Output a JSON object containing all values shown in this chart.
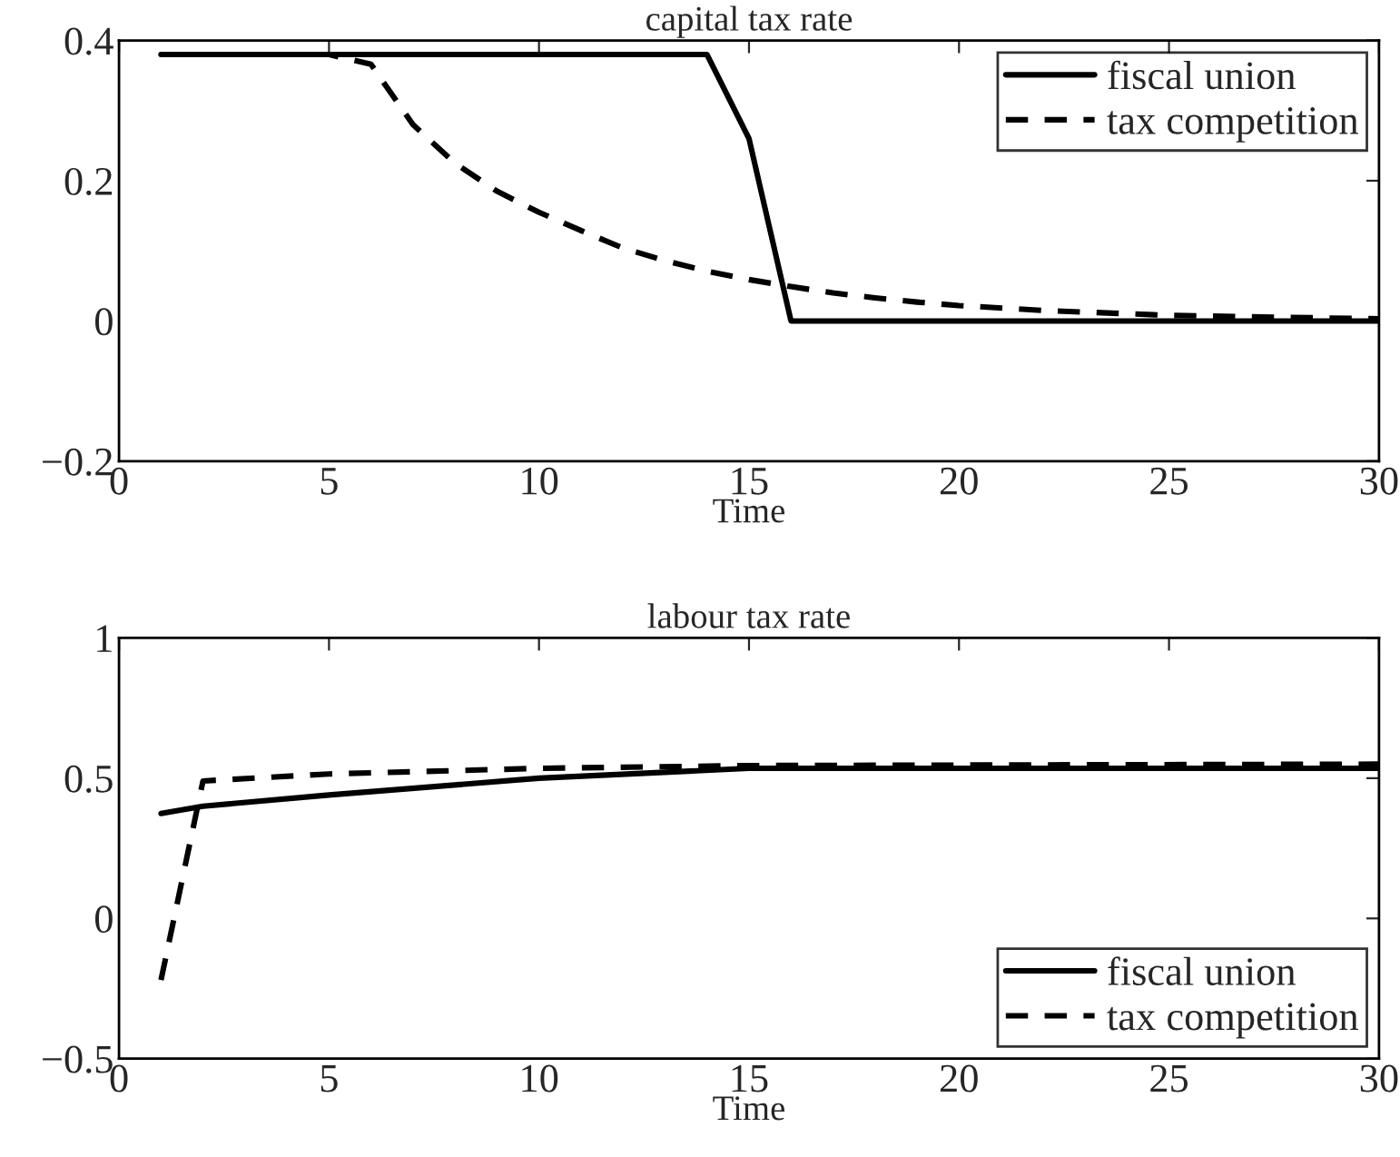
{
  "chart_data": [
    {
      "type": "line",
      "title": "capital tax rate",
      "xlabel": "Time",
      "xlim": [
        0,
        30
      ],
      "xticks": [
        0,
        5,
        10,
        15,
        20,
        25,
        30
      ],
      "ylim": [
        -0.2,
        0.4
      ],
      "yticks": [
        {
          "value": -0.2,
          "label": "−0.2"
        },
        0,
        0.2,
        0.4
      ],
      "grid": false,
      "legend": "top right",
      "series": [
        {
          "name": "fiscal union",
          "color": "#000000",
          "line_style": "solid",
          "x": [
            1,
            14,
            15,
            16,
            30
          ],
          "values": [
            0.38,
            0.38,
            0.26,
            0,
            0
          ]
        },
        {
          "name": "tax competition",
          "color": "#000000",
          "line_style": "dashed",
          "x": [
            1,
            5,
            6,
            7,
            8,
            9,
            10,
            11,
            12,
            13,
            14,
            15,
            16,
            17,
            18,
            19,
            20,
            22,
            25,
            30
          ],
          "values": [
            0.38,
            0.38,
            0.366,
            0.28,
            0.225,
            0.185,
            0.155,
            0.129,
            0.104,
            0.086,
            0.071,
            0.059,
            0.049,
            0.04,
            0.033,
            0.027,
            0.022,
            0.015,
            0.008,
            0.003
          ]
        }
      ]
    },
    {
      "type": "line",
      "title": "labour tax rate",
      "xlabel": "Time",
      "xlim": [
        0,
        30
      ],
      "xticks": [
        0,
        5,
        10,
        15,
        20,
        25,
        30
      ],
      "ylim": [
        -0.5,
        1
      ],
      "yticks": [
        {
          "value": -0.5,
          "label": "−0.5"
        },
        0,
        0.5,
        1
      ],
      "grid": false,
      "legend": "bottom right",
      "series": [
        {
          "name": "fiscal union",
          "color": "#000000",
          "line_style": "solid",
          "x": [
            1,
            2,
            5,
            10,
            15,
            30
          ],
          "values": [
            0.374,
            0.4,
            0.44,
            0.5,
            0.535,
            0.535
          ]
        },
        {
          "name": "tax competition",
          "color": "#000000",
          "line_style": "dashed",
          "x": [
            1,
            2,
            5,
            10,
            15,
            30
          ],
          "values": [
            -0.22,
            0.49,
            0.515,
            0.535,
            0.545,
            0.55
          ]
        }
      ]
    }
  ]
}
